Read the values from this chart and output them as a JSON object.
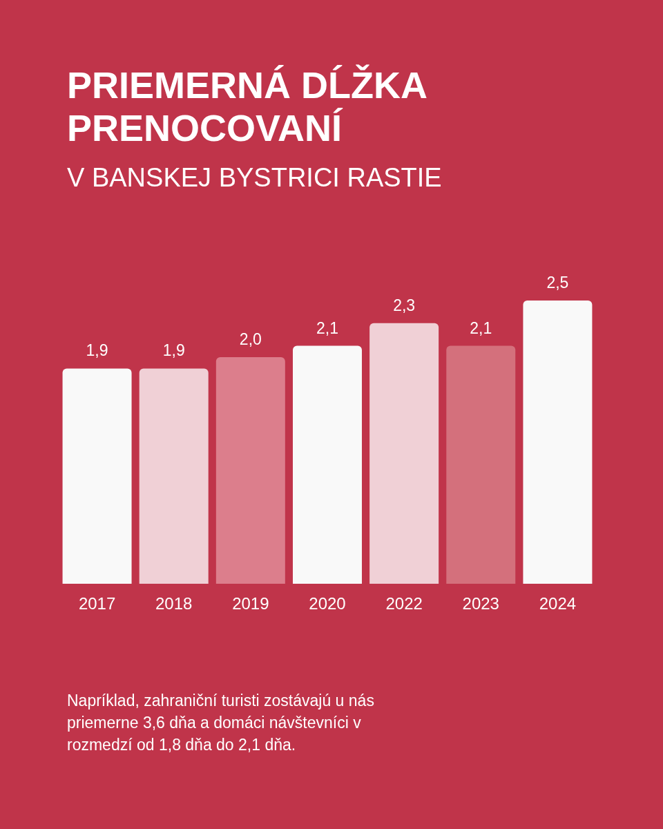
{
  "chart_data": {
    "type": "bar",
    "title": "PRIEMERNÁ DĹŽKA PRENOCOVANÍ",
    "subtitle": "V BANSKEJ BYSTRICI RASTIE",
    "categories": [
      "2017",
      "2018",
      "2019",
      "2020",
      "2022",
      "2023",
      "2024"
    ],
    "values": [
      1.9,
      1.9,
      2.0,
      2.1,
      2.3,
      2.1,
      2.5
    ],
    "colors": [
      "#f9f9f9",
      "#f0d0d6",
      "#dc7e8c",
      "#f9f9f9",
      "#f0d0d6",
      "#d4707c",
      "#f9f9f9"
    ],
    "value_labels": [
      "1,9",
      "1,9",
      "2,0",
      "2,1",
      "2,3",
      "2,1",
      "2,5"
    ],
    "tick_labels": "x",
    "annotations": [
      "Napríklad, zahraniční turisti zostávajú u nás priemerne 3,6 dňa a domáci návštevníci v rozmedzí od 1,8 dňa do 2,1 dňa."
    ]
  }
}
